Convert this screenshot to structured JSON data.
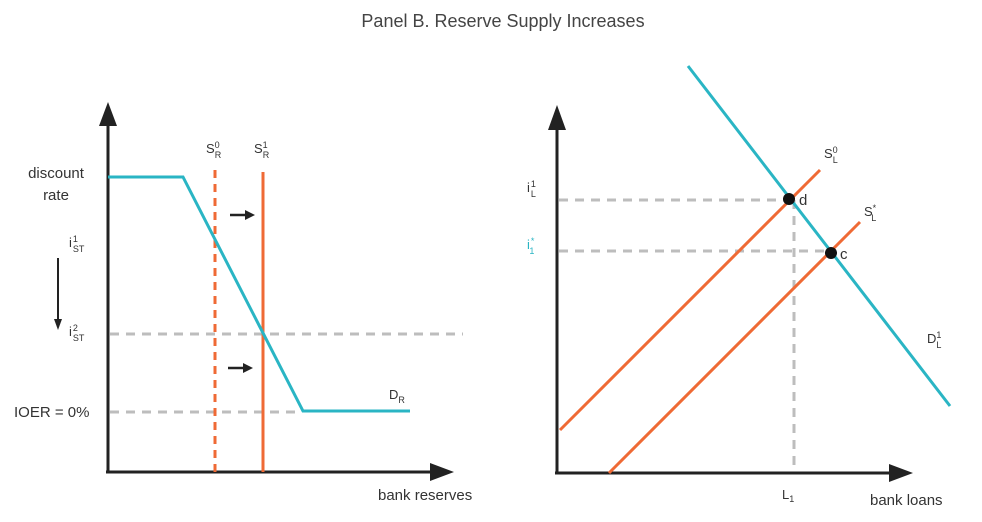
{
  "title": "Panel B. Reserve Supply Increases",
  "colors": {
    "demand": "#2ab5c4",
    "supply": "#ef6a35",
    "grid": "#bdbdbd",
    "axis": "#222222",
    "highlight": "#2ab5c4"
  },
  "left_panel": {
    "discount_rate_line1": "discount",
    "discount_rate_line2": "rate",
    "i_st1_base": "i",
    "i_st1_sup": "1",
    "i_st1_sub": "ST",
    "i_st2_base": "i",
    "i_st2_sup": "2",
    "i_st2_sub": "ST",
    "ioer": "IOER = 0%",
    "sr0_base": "S",
    "sr0_sup": "0",
    "sr0_sub": "R",
    "sr1_base": "S",
    "sr1_sup": "1",
    "sr1_sub": "R",
    "dr_base": "D",
    "dr_sub": "R",
    "x_axis": "bank reserves"
  },
  "right_panel": {
    "il1_base": "i",
    "il1_sup": "1",
    "il1_sub": "L",
    "i1star_base": "i",
    "i1star_sup": "*",
    "i1star_sub": "1",
    "sl0_base": "S",
    "sl0_sup": "0",
    "sl0_sub": "L",
    "slstar_base": "S",
    "slstar_sup": "*",
    "slstar_sub": "L",
    "dl1_base": "D",
    "dl1_sup": "1",
    "dl1_sub": "L",
    "point_d": "d",
    "point_c": "c",
    "l1_base": "L",
    "l1_sub": "1",
    "x_axis": "bank loans"
  }
}
